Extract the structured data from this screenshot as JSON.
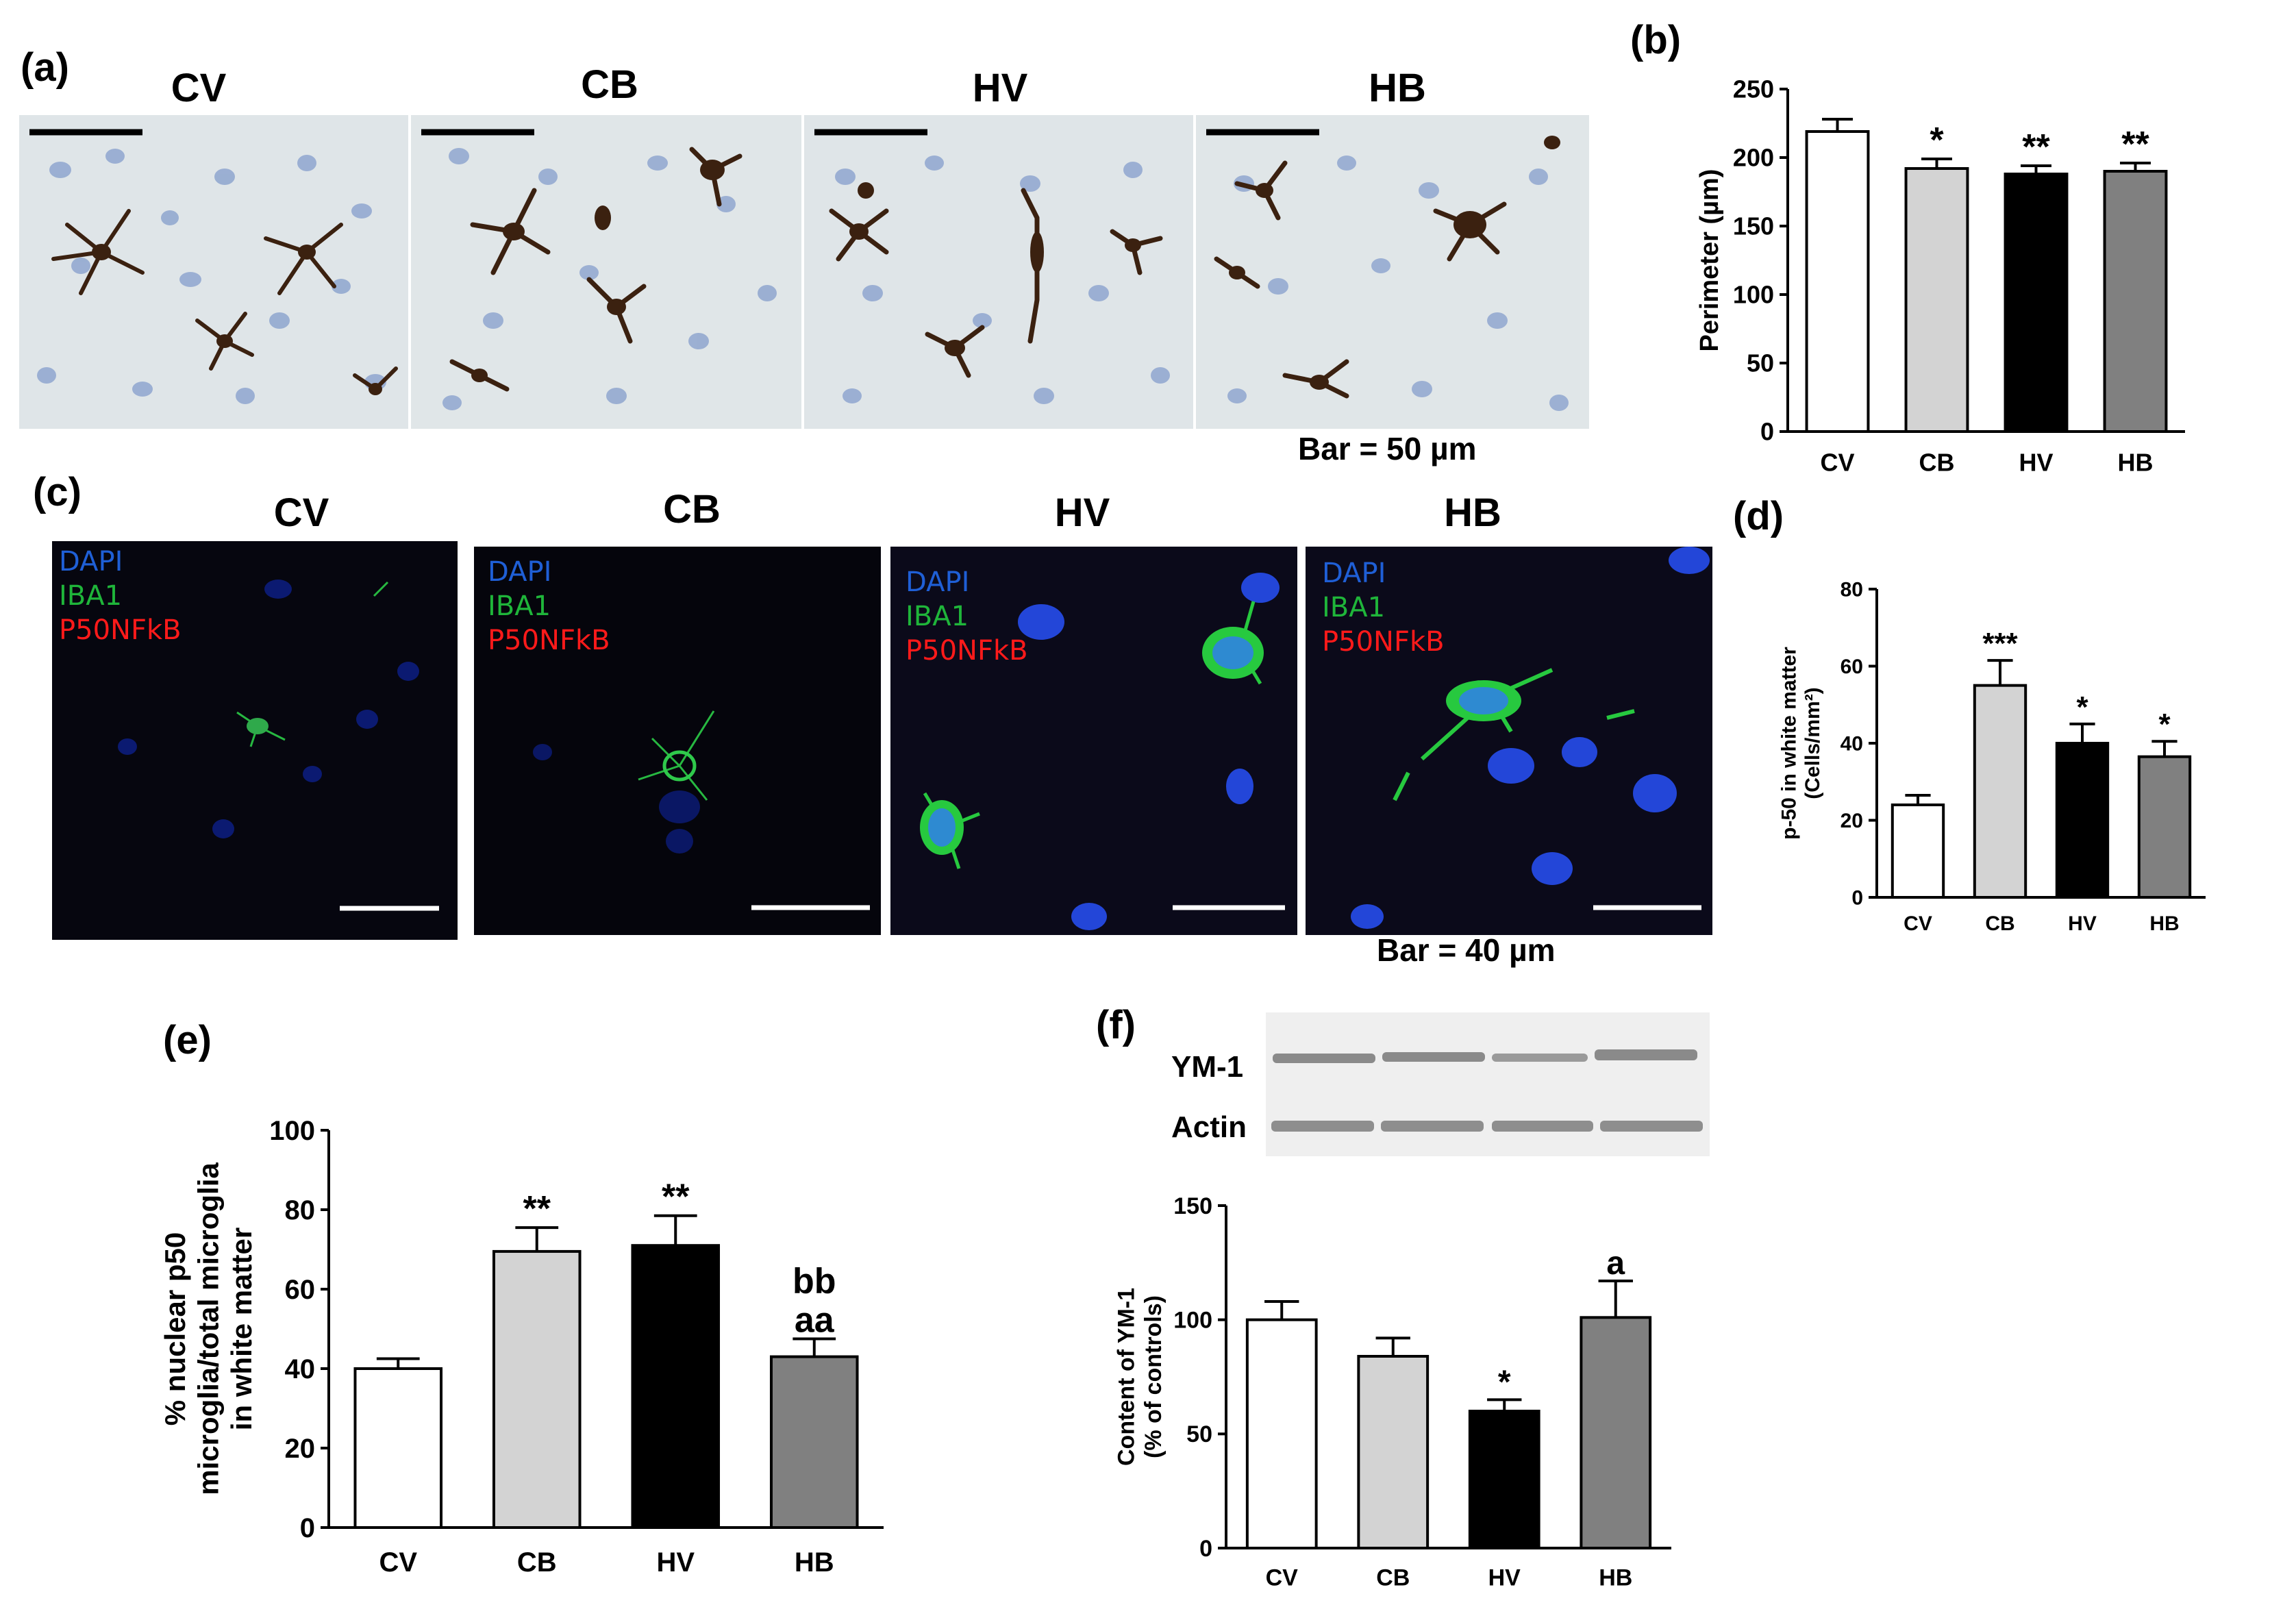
{
  "panels": {
    "a": {
      "letter": "(a)",
      "images": [
        "CV",
        "CB",
        "HV",
        "HB"
      ],
      "scale_caption": "Bar = 50 µm"
    },
    "b": {
      "letter": "(b)"
    },
    "c": {
      "letter": "(c)",
      "images": [
        "CV",
        "CB",
        "HV",
        "HB"
      ],
      "legend": {
        "dapi": "DAPI",
        "iba1": "IBA1",
        "p50": "P50NFkB"
      },
      "scale_caption": "Bar = 40 µm"
    },
    "d": {
      "letter": "(d)"
    },
    "e": {
      "letter": "(e)"
    },
    "f": {
      "letter": "(f)",
      "blot_labels": [
        "YM-1",
        "Actin"
      ]
    }
  },
  "colors": {
    "CV": "#ffffff",
    "CB": "#d3d3d3",
    "HV": "#000000",
    "HB": "#808080",
    "legend_dapi": "#1f5fd6",
    "legend_iba1": "#1fb53a",
    "legend_p50": "#ff1a1a"
  },
  "chart_data": [
    {
      "id": "b",
      "type": "bar",
      "categories": [
        "CV",
        "CB",
        "HV",
        "HB"
      ],
      "values": [
        219,
        192,
        188,
        190
      ],
      "errors": [
        9,
        7,
        6,
        6
      ],
      "annotations": [
        "",
        "*",
        "**",
        "**"
      ],
      "ylabel": [
        "Perimeter (µm)"
      ],
      "ylim": [
        0,
        250
      ],
      "yticks": [
        0,
        50,
        100,
        150,
        200,
        250
      ]
    },
    {
      "id": "d",
      "type": "bar",
      "categories": [
        "CV",
        "CB",
        "HV",
        "HB"
      ],
      "values": [
        24,
        55,
        40,
        36.5
      ],
      "errors": [
        2.5,
        6.5,
        5,
        4
      ],
      "annotations": [
        "",
        "***",
        "*",
        "*"
      ],
      "ylabel": [
        "p-50 in white matter",
        "(Cells/mm²)"
      ],
      "ylim": [
        0,
        80
      ],
      "yticks": [
        0,
        20,
        40,
        60,
        80
      ]
    },
    {
      "id": "e",
      "type": "bar",
      "categories": [
        "CV",
        "CB",
        "HV",
        "HB"
      ],
      "values": [
        40,
        69.5,
        71,
        43
      ],
      "errors": [
        2.5,
        6,
        7.5,
        4.5
      ],
      "annotations": [
        "",
        "**",
        "**",
        "aa"
      ],
      "annotations_2": [
        "",
        "",
        "",
        "bb"
      ],
      "ylabel": [
        "% nuclear p50",
        "microglia/total microglia",
        "in white matter"
      ],
      "ylim": [
        0,
        100
      ],
      "yticks": [
        0,
        20,
        40,
        60,
        80,
        100
      ]
    },
    {
      "id": "f",
      "type": "bar",
      "categories": [
        "CV",
        "CB",
        "HV",
        "HB"
      ],
      "values": [
        100,
        84,
        60,
        101
      ],
      "errors": [
        8,
        8,
        5,
        16
      ],
      "annotations": [
        "",
        "",
        "*",
        "a"
      ],
      "ylabel": [
        "Content of YM-1",
        "(% of controls)"
      ],
      "ylim": [
        0,
        150
      ],
      "yticks": [
        0,
        50,
        100,
        150
      ]
    }
  ]
}
